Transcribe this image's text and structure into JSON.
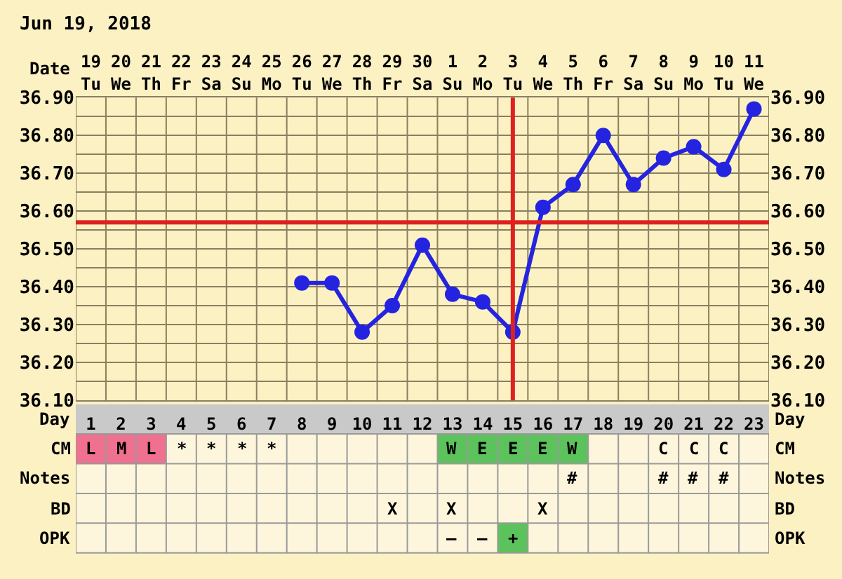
{
  "chart_data": [
    {
      "type": "line",
      "title": "Jun 19, 2018",
      "xlabel": "Date",
      "x2label": "Day",
      "categories": [
        "19\nTu",
        "20\nWe",
        "21\nTh",
        "22\nFr",
        "23\nSa",
        "24\nSu",
        "25\nMo",
        "26\nTu",
        "27\nWe",
        "28\nTh",
        "29\nFr",
        "30\nSa",
        "1\nSu",
        "2\nMo",
        "3\nTu",
        "4\nWe",
        "5\nTh",
        "6\nFr",
        "7\nSa",
        "8\nSu",
        "9\nMo",
        "10\nTu",
        "11\nWe"
      ],
      "series": [
        {
          "color": "#2424e0",
          "values": [
            null,
            null,
            null,
            null,
            null,
            null,
            null,
            36.41,
            36.41,
            36.28,
            36.35,
            36.51,
            36.38,
            36.36,
            36.28,
            36.61,
            36.67,
            36.8,
            36.67,
            36.74,
            36.77,
            36.71,
            36.87
          ]
        }
      ],
      "ylim": [
        36.1,
        36.9
      ],
      "yticks": [
        {
          "value": 36.1,
          "label": "36.10"
        },
        {
          "value": 36.2,
          "label": "36.20"
        },
        {
          "value": 36.3,
          "label": "36.30"
        },
        {
          "value": 36.4,
          "label": "36.40"
        },
        {
          "value": 36.5,
          "label": "36.50"
        },
        {
          "value": 36.6,
          "label": "36.60"
        },
        {
          "value": 36.7,
          "label": "36.70"
        },
        {
          "value": 36.8,
          "label": "36.80"
        },
        {
          "value": 36.9,
          "label": "36.90"
        }
      ],
      "y2lim": [
        36.1,
        36.9
      ],
      "y2ticks": [
        {
          "value": 36.1,
          "label": "36.10"
        },
        {
          "value": 36.2,
          "label": "36.20"
        },
        {
          "value": 36.3,
          "label": "36.30"
        },
        {
          "value": 36.4,
          "label": "36.40"
        },
        {
          "value": 36.5,
          "label": "36.50"
        },
        {
          "value": 36.6,
          "label": "36.60"
        },
        {
          "value": 36.7,
          "label": "36.70"
        },
        {
          "value": 36.8,
          "label": "36.80"
        },
        {
          "value": 36.9,
          "label": "36.90"
        }
      ],
      "x2lim": [
        0.5,
        23.5
      ],
      "x2ticks": [
        1,
        2,
        3,
        4,
        5,
        6,
        7,
        8,
        9,
        10,
        11,
        12,
        13,
        14,
        15,
        16,
        17,
        18,
        19,
        20,
        21,
        22,
        23
      ],
      "ref_lines": [
        {
          "axis": "y",
          "value": 36.57,
          "color": "#e02020"
        },
        {
          "axis": "x",
          "value": "3\nTu",
          "color": "#e02020"
        }
      ],
      "grid": true,
      "marker": "circle",
      "line_style": "solid"
    },
    {
      "type": "other",
      "y_categories": [
        "CM",
        "Notes",
        "BD",
        "OPK"
      ],
      "cell_labels": [
        [
          "L",
          "M",
          "L",
          "*",
          "*",
          "*",
          "*",
          null,
          null,
          null,
          null,
          null,
          "W",
          "E",
          "E",
          "E",
          "W",
          null,
          null,
          "C",
          "C",
          "C",
          null
        ],
        [
          null,
          null,
          null,
          null,
          null,
          null,
          null,
          null,
          null,
          null,
          null,
          null,
          null,
          null,
          null,
          null,
          "#",
          null,
          null,
          "#",
          "#",
          "#",
          null
        ],
        [
          null,
          null,
          null,
          null,
          null,
          null,
          null,
          null,
          null,
          null,
          "X",
          null,
          "X",
          null,
          null,
          "X",
          null,
          null,
          null,
          null,
          null,
          null,
          null
        ],
        [
          null,
          null,
          null,
          null,
          null,
          null,
          null,
          null,
          null,
          null,
          null,
          null,
          "–",
          "–",
          "+",
          null,
          null,
          null,
          null,
          null,
          null,
          null,
          null
        ]
      ],
      "colors": [
        [
          "#f07090",
          "#f07090",
          "#f07090",
          null,
          null,
          null,
          null,
          null,
          null,
          null,
          null,
          null,
          "#5cc25c",
          "#5cc25c",
          "#5cc25c",
          "#5cc25c",
          "#5cc25c",
          null,
          null,
          null,
          null,
          null,
          null
        ],
        [
          null,
          null,
          null,
          null,
          null,
          null,
          null,
          null,
          null,
          null,
          null,
          null,
          null,
          null,
          null,
          null,
          null,
          null,
          null,
          null,
          null,
          null,
          null
        ],
        [
          null,
          null,
          null,
          null,
          null,
          null,
          null,
          null,
          null,
          null,
          null,
          null,
          null,
          null,
          null,
          null,
          null,
          null,
          null,
          null,
          null,
          null,
          null
        ],
        [
          null,
          null,
          null,
          null,
          null,
          null,
          null,
          null,
          null,
          null,
          null,
          null,
          null,
          null,
          "#5cc25c",
          null,
          null,
          null,
          null,
          null,
          null,
          null,
          null
        ]
      ]
    }
  ]
}
